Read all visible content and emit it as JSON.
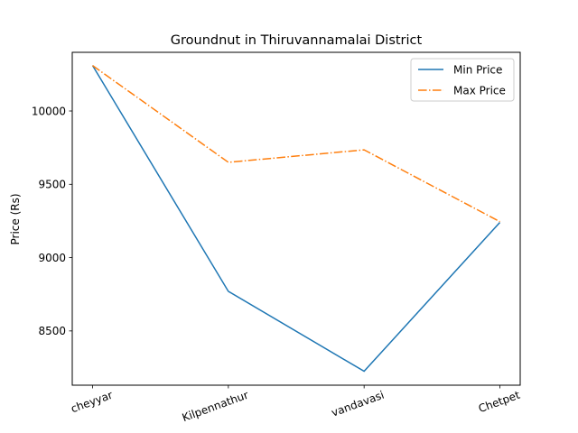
{
  "chart_data": {
    "type": "line",
    "title": "Groundnut in Thiruvannamalai District",
    "xlabel": "",
    "ylabel": "Price (Rs)",
    "categories": [
      "cheyyar",
      "Kilpennathur",
      "vandavasi",
      "Chetpet"
    ],
    "series": [
      {
        "name": "Min Price",
        "values": [
          10310,
          8770,
          8225,
          9240
        ],
        "color": "#1f77b4",
        "style": "solid"
      },
      {
        "name": "Max Price",
        "values": [
          10310,
          9650,
          9735,
          9245
        ],
        "color": "#ff7f0e",
        "style": "dashdot"
      }
    ],
    "ylim": [
      8130,
      10400
    ],
    "yticks": [
      8500,
      9000,
      9500,
      10000
    ],
    "grid": false,
    "legend": "top-right",
    "xtick_rotation": 20
  }
}
